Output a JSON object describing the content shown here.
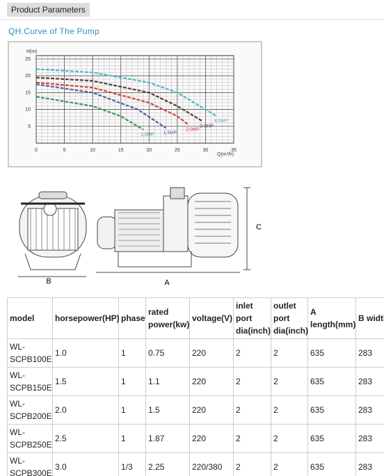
{
  "header": {
    "tab": "Product Parameters",
    "subtitle": "QH.Curve of The Pump"
  },
  "chart_data": {
    "type": "line",
    "y_label": "H(m)",
    "x_label": "Q(m³/h)",
    "xlim": [
      0,
      35
    ],
    "xticks": [
      0,
      5,
      10,
      15,
      20,
      25,
      30,
      35
    ],
    "ylim": [
      0,
      26
    ],
    "yticks": [
      5,
      10,
      15,
      20,
      25
    ],
    "grid": true,
    "series": [
      {
        "name": "4.0HP",
        "color": "#4fb6c8",
        "x": [
          0,
          10,
          20,
          25,
          30,
          32
        ],
        "values": [
          22,
          21,
          18,
          15,
          10,
          8
        ]
      },
      {
        "name": "3.0HP",
        "color": "#5a3a3a",
        "x": [
          0,
          10,
          20,
          25,
          29.5
        ],
        "values": [
          19.5,
          18.5,
          15,
          11,
          6.5
        ]
      },
      {
        "name": "2.0HP",
        "color": "#d04040",
        "x": [
          0,
          10,
          20,
          25,
          27
        ],
        "values": [
          18,
          16.5,
          12,
          8,
          5.5
        ]
      },
      {
        "name": "1.5HP",
        "color": "#5a5aa8",
        "x": [
          0,
          10,
          18,
          23
        ],
        "values": [
          17.5,
          15,
          10,
          4.5
        ]
      },
      {
        "name": "1.0HP",
        "color": "#3a9a5a",
        "x": [
          0,
          10,
          15,
          19
        ],
        "values": [
          13.8,
          11,
          8,
          4
        ]
      }
    ]
  },
  "diagram": {
    "labels": [
      "B",
      "A",
      "C"
    ]
  },
  "table": {
    "header": [
      "model",
      "horsepower(HP)",
      "phase",
      "rated power(kw)",
      "voltage(V)",
      "inlet port dia(inch)",
      "outlet port dia(inch)",
      "A length(mm)",
      "B width(mm)"
    ],
    "rows": [
      [
        "WL-SCPB100E",
        "1.0",
        "1",
        "0.75",
        "220",
        "2",
        "2",
        "635",
        "283"
      ],
      [
        "WL-SCPB150E",
        "1.5",
        "1",
        "1.1",
        "220",
        "2",
        "2",
        "635",
        "283"
      ],
      [
        "WL-SCPB200E",
        "2.0",
        "1",
        "1.5",
        "220",
        "2",
        "2",
        "635",
        "283"
      ],
      [
        "WL-SCPB250E",
        "2.5",
        "1",
        "1.87",
        "220",
        "2",
        "2",
        "635",
        "283"
      ],
      [
        "WL-SCPB300E",
        "3.0",
        "1/3",
        "2.25",
        "220/380",
        "2",
        "2",
        "635",
        "283"
      ]
    ]
  }
}
